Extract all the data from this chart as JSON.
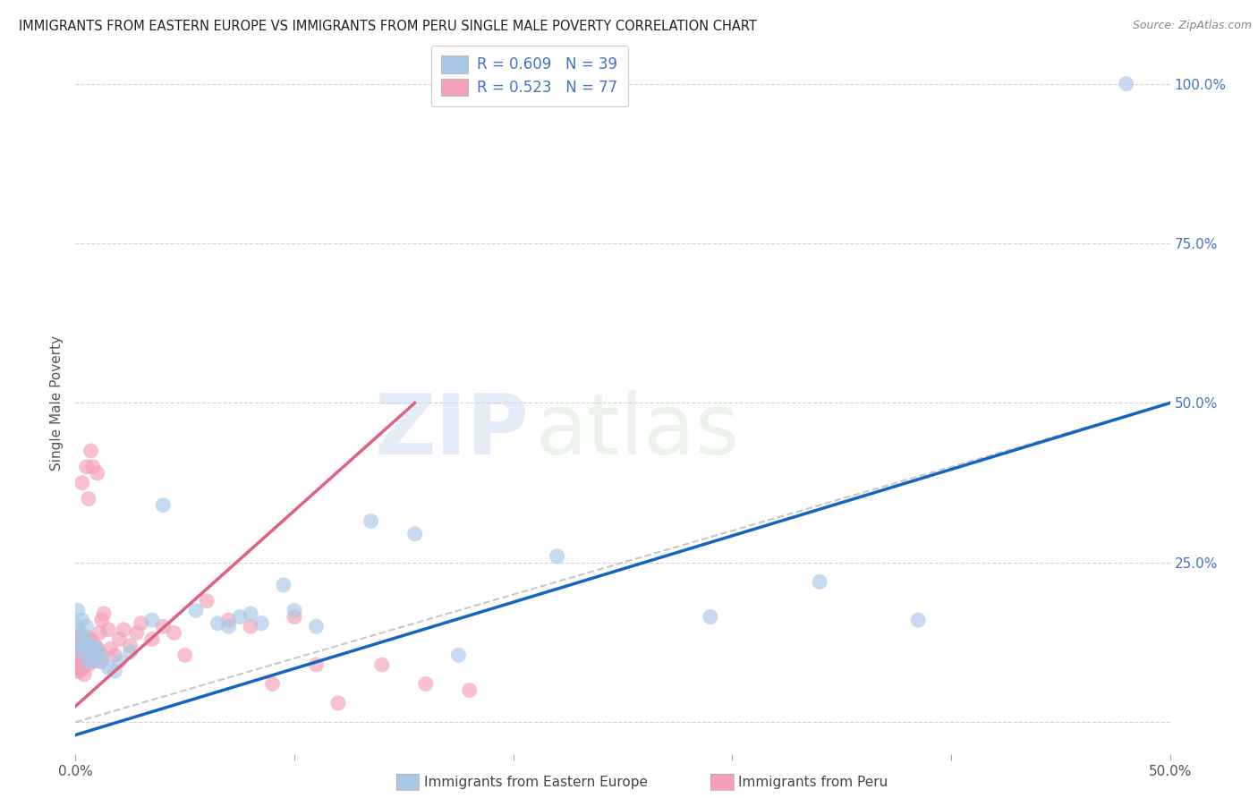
{
  "title": "IMMIGRANTS FROM EASTERN EUROPE VS IMMIGRANTS FROM PERU SINGLE MALE POVERTY CORRELATION CHART",
  "source": "Source: ZipAtlas.com",
  "ylabel": "Single Male Poverty",
  "watermark_zip": "ZIP",
  "watermark_atlas": "atlas",
  "xlim": [
    0.0,
    0.5
  ],
  "ylim": [
    -0.05,
    1.05
  ],
  "series1_name": "Immigrants from Eastern Europe",
  "series1_color": "#a8c8e8",
  "series1_line_color": "#1565C0",
  "series1_R": 0.609,
  "series1_N": 39,
  "series2_name": "Immigrants from Peru",
  "series2_color": "#f4a0b8",
  "series2_line_color": "#e06080",
  "series2_R": 0.523,
  "series2_N": 77,
  "blue_text_color": "#4472C4",
  "background_color": "#ffffff",
  "grid_color": "#d0d0d0",
  "ee_x": [
    0.001,
    0.001,
    0.002,
    0.002,
    0.003,
    0.003,
    0.004,
    0.005,
    0.005,
    0.006,
    0.007,
    0.008,
    0.009,
    0.01,
    0.011,
    0.012,
    0.015,
    0.018,
    0.02,
    0.025,
    0.035,
    0.04,
    0.055,
    0.065,
    0.07,
    0.075,
    0.08,
    0.085,
    0.095,
    0.1,
    0.11,
    0.135,
    0.155,
    0.175,
    0.22,
    0.29,
    0.34,
    0.385,
    0.48
  ],
  "ee_y": [
    0.15,
    0.175,
    0.12,
    0.14,
    0.16,
    0.11,
    0.13,
    0.15,
    0.125,
    0.095,
    0.12,
    0.1,
    0.11,
    0.115,
    0.095,
    0.1,
    0.085,
    0.08,
    0.095,
    0.11,
    0.16,
    0.34,
    0.175,
    0.155,
    0.15,
    0.165,
    0.17,
    0.155,
    0.215,
    0.175,
    0.15,
    0.315,
    0.295,
    0.105,
    0.26,
    0.165,
    0.22,
    0.16,
    1.0
  ],
  "peru_x": [
    0.001,
    0.001,
    0.001,
    0.001,
    0.001,
    0.001,
    0.001,
    0.001,
    0.001,
    0.001,
    0.002,
    0.002,
    0.002,
    0.002,
    0.002,
    0.002,
    0.002,
    0.002,
    0.002,
    0.002,
    0.003,
    0.003,
    0.003,
    0.003,
    0.003,
    0.003,
    0.003,
    0.004,
    0.004,
    0.004,
    0.004,
    0.004,
    0.005,
    0.005,
    0.005,
    0.005,
    0.006,
    0.006,
    0.006,
    0.006,
    0.007,
    0.007,
    0.007,
    0.008,
    0.008,
    0.008,
    0.009,
    0.009,
    0.01,
    0.01,
    0.011,
    0.011,
    0.012,
    0.012,
    0.013,
    0.015,
    0.016,
    0.018,
    0.02,
    0.022,
    0.025,
    0.028,
    0.03,
    0.035,
    0.04,
    0.045,
    0.05,
    0.06,
    0.07,
    0.08,
    0.09,
    0.1,
    0.11,
    0.12,
    0.14,
    0.16,
    0.18
  ],
  "peru_y": [
    0.1,
    0.12,
    0.09,
    0.11,
    0.08,
    0.13,
    0.095,
    0.115,
    0.085,
    0.105,
    0.1,
    0.09,
    0.115,
    0.085,
    0.125,
    0.095,
    0.11,
    0.08,
    0.135,
    0.105,
    0.11,
    0.095,
    0.12,
    0.085,
    0.375,
    0.105,
    0.13,
    0.115,
    0.09,
    0.135,
    0.075,
    0.1,
    0.125,
    0.095,
    0.4,
    0.11,
    0.13,
    0.09,
    0.35,
    0.115,
    0.105,
    0.425,
    0.13,
    0.11,
    0.095,
    0.4,
    0.12,
    0.1,
    0.39,
    0.115,
    0.14,
    0.11,
    0.16,
    0.095,
    0.17,
    0.145,
    0.115,
    0.105,
    0.13,
    0.145,
    0.12,
    0.14,
    0.155,
    0.13,
    0.15,
    0.14,
    0.105,
    0.19,
    0.16,
    0.15,
    0.06,
    0.165,
    0.09,
    0.03,
    0.09,
    0.06,
    0.05
  ],
  "ee_line_x": [
    0.0,
    0.5
  ],
  "ee_line_y": [
    -0.02,
    0.5
  ],
  "peru_line_x": [
    0.0,
    0.155
  ],
  "peru_line_y": [
    0.025,
    0.5
  ]
}
